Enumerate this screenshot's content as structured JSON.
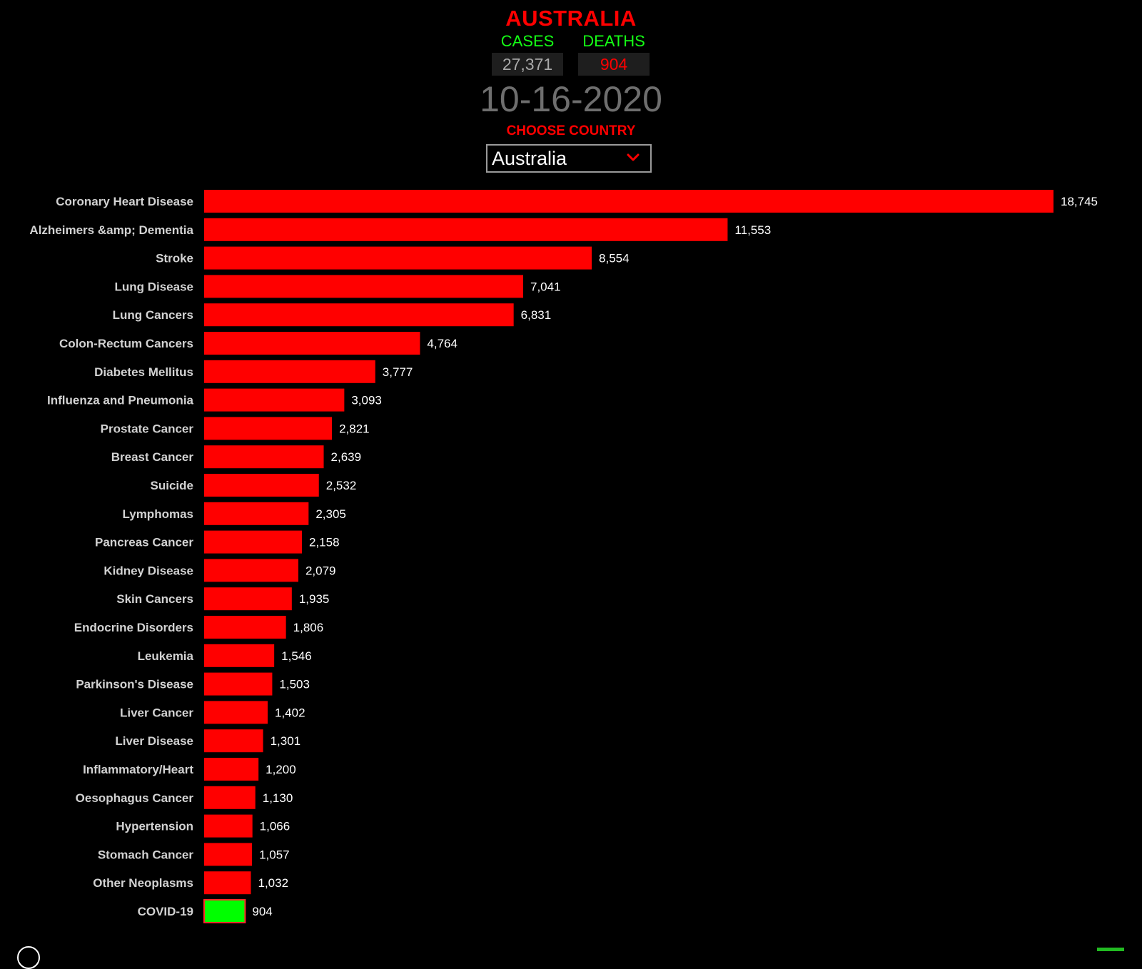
{
  "header": {
    "country_title": "AUSTRALIA",
    "cases_label": "CASES",
    "deaths_label": "DEATHS",
    "cases_value": "27,371",
    "deaths_value": "904",
    "date": "10-16-2020",
    "choose_label": "CHOOSE COUNTRY",
    "selected_country": "Australia"
  },
  "colors": {
    "bar": "#ff0000",
    "highlight_bar": "#00ff00",
    "title": "#ff0000",
    "stat_label": "#15ff15"
  },
  "icons": {
    "dropdown": "chevron-down-icon",
    "corner_left": "circle-icon",
    "corner_right": "green-square-icon"
  },
  "chart_data": {
    "type": "bar",
    "orientation": "horizontal",
    "categories": [
      "Coronary Heart Disease",
      "Alzheimers &amp; Dementia",
      "Stroke",
      "Lung Disease",
      "Lung Cancers",
      "Colon-Rectum Cancers",
      "Diabetes Mellitus",
      "Influenza and Pneumonia",
      "Prostate Cancer",
      "Breast Cancer",
      "Suicide",
      "Lymphomas",
      "Pancreas Cancer",
      "Kidney Disease",
      "Skin Cancers",
      "Endocrine Disorders",
      "Leukemia",
      "Parkinson's Disease",
      "Liver Cancer",
      "Liver Disease",
      "Inflammatory/Heart",
      "Oesophagus Cancer",
      "Hypertension",
      "Stomach Cancer",
      "Other Neoplasms",
      "COVID-19"
    ],
    "values": [
      18745,
      11553,
      8554,
      7041,
      6831,
      4764,
      3777,
      3093,
      2821,
      2639,
      2532,
      2305,
      2158,
      2079,
      1935,
      1806,
      1546,
      1503,
      1402,
      1301,
      1200,
      1130,
      1066,
      1057,
      1032,
      904
    ],
    "value_labels": [
      "18,745",
      "11,553",
      "8,554",
      "7,041",
      "6,831",
      "4,764",
      "3,777",
      "3,093",
      "2,821",
      "2,639",
      "2,532",
      "2,305",
      "2,158",
      "2,079",
      "1,935",
      "1,806",
      "1,546",
      "1,503",
      "1,402",
      "1,301",
      "1,200",
      "1,130",
      "1,066",
      "1,057",
      "1,032",
      "904"
    ],
    "highlight": "COVID-19",
    "xlim": [
      0,
      18745
    ],
    "grid": false,
    "legend": "none"
  }
}
